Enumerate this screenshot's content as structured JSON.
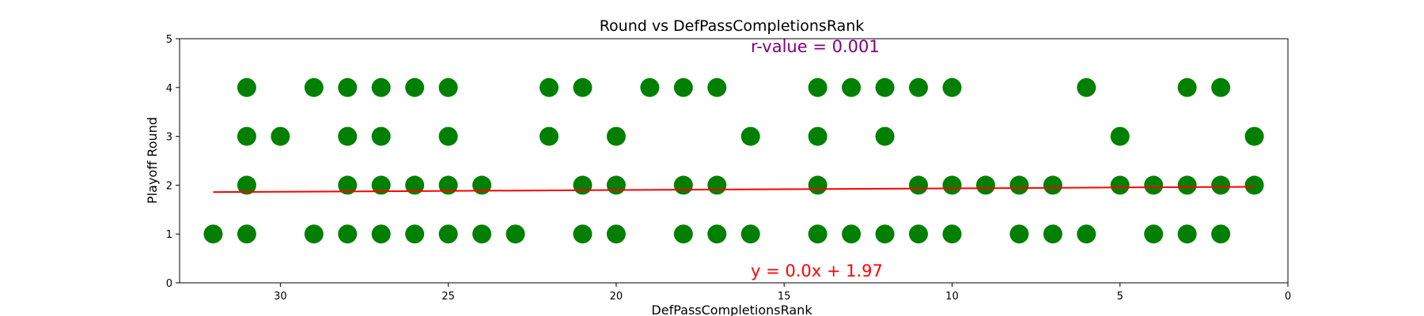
{
  "chart_data": {
    "type": "scatter",
    "title": "Round vs DefPassCompletionsRank",
    "xlabel": "DefPassCompletionsRank",
    "ylabel": "Playoff Round",
    "xlim": [
      33,
      0
    ],
    "ylim": [
      0,
      5
    ],
    "x_inverted": true,
    "xticks": [
      30,
      25,
      20,
      15,
      10,
      5,
      0
    ],
    "yticks": [
      0,
      1,
      2,
      3,
      4,
      5
    ],
    "grid": false,
    "point_color": "#008000",
    "line_color": "#ff0000",
    "annotation_color": "#800080",
    "r_value_label": "r-value = 0.001",
    "equation_label": "y = 0.0x + 1.97",
    "regression": {
      "slope": -0.0035,
      "intercept": 1.97
    },
    "points": [
      {
        "x": 31,
        "y": 4
      },
      {
        "x": 29,
        "y": 4
      },
      {
        "x": 28,
        "y": 4
      },
      {
        "x": 27,
        "y": 4
      },
      {
        "x": 26,
        "y": 4
      },
      {
        "x": 25,
        "y": 4
      },
      {
        "x": 22,
        "y": 4
      },
      {
        "x": 21,
        "y": 4
      },
      {
        "x": 19,
        "y": 4
      },
      {
        "x": 18,
        "y": 4
      },
      {
        "x": 17,
        "y": 4
      },
      {
        "x": 14,
        "y": 4
      },
      {
        "x": 13,
        "y": 4
      },
      {
        "x": 12,
        "y": 4
      },
      {
        "x": 11,
        "y": 4
      },
      {
        "x": 10,
        "y": 4
      },
      {
        "x": 6,
        "y": 4
      },
      {
        "x": 3,
        "y": 4
      },
      {
        "x": 2,
        "y": 4
      },
      {
        "x": 31,
        "y": 3
      },
      {
        "x": 30,
        "y": 3
      },
      {
        "x": 28,
        "y": 3
      },
      {
        "x": 27,
        "y": 3
      },
      {
        "x": 25,
        "y": 3
      },
      {
        "x": 22,
        "y": 3
      },
      {
        "x": 20,
        "y": 3
      },
      {
        "x": 16,
        "y": 3
      },
      {
        "x": 14,
        "y": 3
      },
      {
        "x": 12,
        "y": 3
      },
      {
        "x": 5,
        "y": 3
      },
      {
        "x": 1,
        "y": 3
      },
      {
        "x": 31,
        "y": 2
      },
      {
        "x": 28,
        "y": 2
      },
      {
        "x": 27,
        "y": 2
      },
      {
        "x": 26,
        "y": 2
      },
      {
        "x": 25,
        "y": 2
      },
      {
        "x": 24,
        "y": 2
      },
      {
        "x": 21,
        "y": 2
      },
      {
        "x": 20,
        "y": 2
      },
      {
        "x": 18,
        "y": 2
      },
      {
        "x": 17,
        "y": 2
      },
      {
        "x": 14,
        "y": 2
      },
      {
        "x": 11,
        "y": 2
      },
      {
        "x": 10,
        "y": 2
      },
      {
        "x": 9,
        "y": 2
      },
      {
        "x": 8,
        "y": 2
      },
      {
        "x": 7,
        "y": 2
      },
      {
        "x": 5,
        "y": 2
      },
      {
        "x": 4,
        "y": 2
      },
      {
        "x": 3,
        "y": 2
      },
      {
        "x": 2,
        "y": 2
      },
      {
        "x": 1,
        "y": 2
      },
      {
        "x": 32,
        "y": 1
      },
      {
        "x": 31,
        "y": 1
      },
      {
        "x": 29,
        "y": 1
      },
      {
        "x": 28,
        "y": 1
      },
      {
        "x": 27,
        "y": 1
      },
      {
        "x": 26,
        "y": 1
      },
      {
        "x": 25,
        "y": 1
      },
      {
        "x": 24,
        "y": 1
      },
      {
        "x": 23,
        "y": 1
      },
      {
        "x": 21,
        "y": 1
      },
      {
        "x": 20,
        "y": 1
      },
      {
        "x": 18,
        "y": 1
      },
      {
        "x": 17,
        "y": 1
      },
      {
        "x": 16,
        "y": 1
      },
      {
        "x": 14,
        "y": 1
      },
      {
        "x": 13,
        "y": 1
      },
      {
        "x": 12,
        "y": 1
      },
      {
        "x": 11,
        "y": 1
      },
      {
        "x": 10,
        "y": 1
      },
      {
        "x": 8,
        "y": 1
      },
      {
        "x": 7,
        "y": 1
      },
      {
        "x": 6,
        "y": 1
      },
      {
        "x": 4,
        "y": 1
      },
      {
        "x": 3,
        "y": 1
      },
      {
        "x": 2,
        "y": 1
      }
    ]
  }
}
